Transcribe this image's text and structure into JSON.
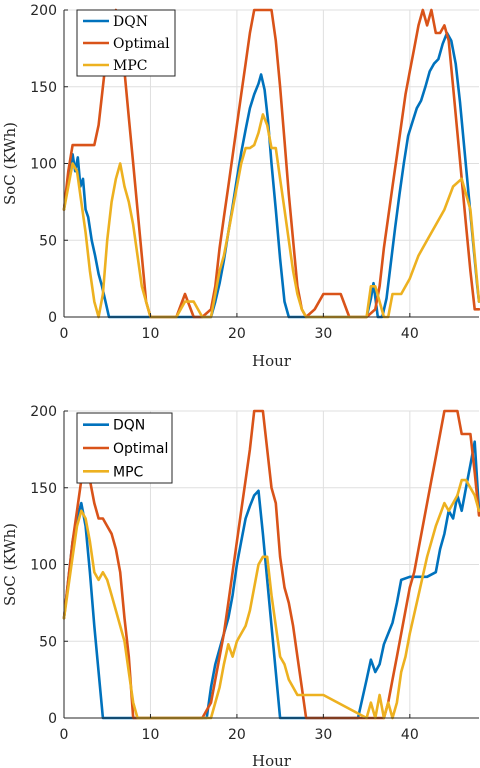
{
  "chart_data": [
    {
      "type": "line",
      "xlabel": "Hour",
      "ylabel": "SoC (KWh)",
      "xlim": [
        0,
        48
      ],
      "ylim": [
        0,
        200
      ],
      "xticks": [
        "0",
        "10",
        "20",
        "30",
        "40"
      ],
      "yticks": [
        "0",
        "50",
        "100",
        "150",
        "200"
      ],
      "grid": true,
      "legend": "top-left",
      "legend_font": "serif",
      "series": [
        {
          "name": "DQN",
          "color": "#0072bd",
          "x": [
            0,
            0.5,
            1,
            1.3,
            1.6,
            1.9,
            2.2,
            2.5,
            2.8,
            3.2,
            3.6,
            4.0,
            4.4,
            4.8,
            5.2,
            10,
            15,
            17,
            17.5,
            18,
            18.5,
            19,
            19.5,
            20,
            20.5,
            21,
            21.5,
            22,
            22.5,
            22.8,
            23.2,
            23.6,
            24,
            24.5,
            25,
            25.5,
            26,
            30,
            31,
            34,
            35,
            35.5,
            35.8,
            36.3,
            36.8,
            37.3,
            37.8,
            38.3,
            38.8,
            39.3,
            39.8,
            40.3,
            40.8,
            41.3,
            41.8,
            42.3,
            42.8,
            43.3,
            43.8,
            44.3,
            44.8,
            45.3,
            45.8,
            46.3,
            46.8,
            47.3,
            47.8,
            48
          ],
          "y": [
            70,
            90,
            106,
            95,
            104,
            85,
            90,
            70,
            65,
            50,
            40,
            28,
            20,
            10,
            0,
            0,
            0,
            0,
            10,
            22,
            37,
            55,
            72,
            90,
            107,
            122,
            136,
            145,
            152,
            158,
            148,
            128,
            100,
            70,
            38,
            10,
            0,
            0,
            0,
            0,
            0,
            12,
            22,
            0,
            0,
            12,
            35,
            58,
            80,
            100,
            118,
            127,
            136,
            141,
            150,
            160,
            165,
            168,
            178,
            185,
            180,
            165,
            140,
            110,
            80,
            50,
            20,
            10
          ]
        },
        {
          "name": "Optimal",
          "color": "#d95319",
          "x": [
            0,
            0.5,
            1,
            2,
            3,
            3.5,
            4,
            4.5,
            5,
            5.5,
            6,
            6.5,
            7,
            7.5,
            8,
            8.5,
            9,
            9.5,
            10,
            11,
            12,
            13,
            14,
            15,
            16,
            17,
            17.5,
            18,
            18.5,
            19,
            19.5,
            20,
            20.5,
            21,
            21.5,
            22,
            22.5,
            23,
            24,
            24.5,
            25,
            25.5,
            26,
            26.5,
            27,
            27.5,
            28,
            29,
            30,
            31,
            32,
            33,
            34,
            35,
            36,
            36.5,
            37,
            37.5,
            38,
            38.5,
            39,
            39.5,
            40,
            40.5,
            41,
            41.5,
            42,
            42.5,
            43,
            43.5,
            44,
            44.5,
            45,
            45.5,
            46,
            46.5,
            47,
            47.5,
            48
          ],
          "y": [
            70,
            95,
            112,
            112,
            112,
            112,
            125,
            150,
            175,
            195,
            200,
            185,
            160,
            130,
            100,
            70,
            40,
            10,
            0,
            0,
            0,
            0,
            15,
            0,
            0,
            5,
            20,
            45,
            65,
            85,
            105,
            125,
            145,
            165,
            185,
            200,
            200,
            200,
            200,
            180,
            150,
            115,
            80,
            50,
            20,
            5,
            0,
            5,
            15,
            15,
            15,
            0,
            0,
            0,
            5,
            20,
            45,
            65,
            85,
            105,
            125,
            145,
            160,
            175,
            190,
            200,
            190,
            200,
            185,
            185,
            190,
            180,
            150,
            120,
            90,
            60,
            30,
            5,
            5
          ]
        },
        {
          "name": "MPC",
          "color": "#edb120",
          "x": [
            0,
            0.5,
            1,
            1.5,
            2,
            2.5,
            3,
            3.5,
            4,
            4.5,
            5,
            5.5,
            6,
            6.5,
            7,
            7.5,
            8,
            8.5,
            9,
            9.5,
            10,
            12,
            13,
            14,
            15,
            16,
            17,
            17.5,
            18,
            18.5,
            19,
            19.5,
            20,
            20.5,
            21,
            21.5,
            22,
            22.5,
            23,
            23.5,
            24,
            24.5,
            25,
            25.5,
            26,
            26.5,
            27,
            27.5,
            28,
            29,
            30,
            35,
            35.5,
            36,
            36.5,
            37,
            37.5,
            38,
            39,
            40,
            41,
            42,
            43,
            44,
            45,
            46,
            47,
            48
          ],
          "y": [
            70,
            85,
            100,
            95,
            75,
            55,
            30,
            10,
            0,
            15,
            50,
            75,
            90,
            100,
            85,
            75,
            60,
            40,
            20,
            10,
            0,
            0,
            0,
            10,
            10,
            0,
            0,
            15,
            30,
            40,
            55,
            70,
            85,
            100,
            110,
            110,
            112,
            120,
            132,
            125,
            110,
            110,
            90,
            70,
            50,
            30,
            15,
            5,
            0,
            0,
            0,
            0,
            20,
            20,
            10,
            0,
            0,
            15,
            15,
            25,
            40,
            50,
            60,
            70,
            85,
            90,
            70,
            10
          ]
        }
      ]
    },
    {
      "type": "line",
      "xlabel": "Hour",
      "ylabel": "SoC (KWh)",
      "xlim": [
        0,
        48
      ],
      "ylim": [
        0,
        200
      ],
      "xticks": [
        "0",
        "10",
        "20",
        "30",
        "40"
      ],
      "yticks": [
        "0",
        "50",
        "100",
        "150",
        "200"
      ],
      "grid": true,
      "legend": "top-left",
      "legend_font": "sans",
      "series": [
        {
          "name": "DQN",
          "color": "#0072bd",
          "x": [
            0,
            0.5,
            1,
            1.5,
            2,
            2.5,
            3,
            3.5,
            4,
            4.5,
            10,
            15,
            16.5,
            17,
            17.5,
            18,
            18.5,
            19,
            19.5,
            20,
            20.5,
            21,
            21.5,
            22,
            22.5,
            23,
            23.5,
            24,
            24.5,
            25,
            26,
            30,
            34,
            35,
            35.5,
            36,
            36.5,
            37,
            37.5,
            38,
            38.5,
            39,
            40,
            42,
            43,
            43.5,
            44,
            44.5,
            45,
            45.5,
            46,
            46.5,
            47,
            47.5,
            48
          ],
          "y": [
            65,
            90,
            115,
            130,
            140,
            125,
            95,
            60,
            30,
            0,
            0,
            0,
            0,
            20,
            35,
            45,
            55,
            65,
            80,
            100,
            115,
            130,
            138,
            145,
            148,
            120,
            90,
            60,
            30,
            0,
            0,
            0,
            0,
            25,
            38,
            30,
            35,
            48,
            55,
            62,
            75,
            90,
            92,
            92,
            95,
            110,
            120,
            135,
            130,
            145,
            135,
            150,
            165,
            180,
            135
          ]
        },
        {
          "name": "Optimal",
          "color": "#d95319",
          "x": [
            0,
            0.5,
            1,
            1.5,
            2,
            2.5,
            3,
            3.5,
            4,
            4.5,
            5,
            5.5,
            6,
            6.5,
            7,
            7.5,
            8,
            10,
            16,
            17,
            17.5,
            18,
            18.5,
            19,
            19.5,
            20,
            20.5,
            21,
            21.5,
            22,
            22.5,
            23,
            23.5,
            24,
            24.5,
            25,
            25.5,
            26,
            26.5,
            27,
            27.5,
            28,
            30,
            37,
            37.5,
            38,
            38.5,
            39,
            39.5,
            40,
            40.5,
            41,
            41.5,
            42,
            42.5,
            43,
            43.5,
            44,
            44.5,
            45,
            45.5,
            46,
            46.5,
            47,
            47.5,
            48
          ],
          "y": [
            65,
            90,
            115,
            135,
            155,
            165,
            155,
            140,
            130,
            130,
            125,
            120,
            110,
            95,
            65,
            40,
            0,
            0,
            0,
            10,
            25,
            40,
            55,
            75,
            95,
            115,
            135,
            155,
            175,
            200,
            200,
            200,
            175,
            150,
            140,
            105,
            85,
            75,
            60,
            40,
            20,
            0,
            0,
            0,
            10,
            25,
            40,
            55,
            70,
            85,
            95,
            110,
            125,
            140,
            155,
            170,
            185,
            200,
            200,
            200,
            200,
            185,
            185,
            185,
            160,
            132
          ]
        },
        {
          "name": "MPC",
          "color": "#edb120",
          "x": [
            0,
            0.5,
            1,
            1.5,
            2,
            2.5,
            3,
            3.5,
            4,
            4.5,
            5,
            5.5,
            6,
            6.5,
            7,
            7.5,
            8,
            8.5,
            10,
            15,
            17,
            17.5,
            18,
            18.5,
            19,
            19.5,
            20,
            20.5,
            21,
            21.5,
            22,
            22.5,
            23,
            23.5,
            24,
            24.5,
            25,
            25.5,
            26,
            26.5,
            27,
            30,
            35,
            35.5,
            36,
            36.5,
            37,
            37.5,
            38,
            38.5,
            39,
            39.5,
            40,
            41,
            42,
            43,
            44,
            44.5,
            45,
            45.5,
            46,
            46.5,
            47,
            47.5,
            48
          ],
          "y": [
            65,
            85,
            105,
            125,
            135,
            130,
            115,
            95,
            90,
            95,
            90,
            80,
            70,
            60,
            50,
            30,
            10,
            0,
            0,
            0,
            0,
            10,
            20,
            35,
            48,
            40,
            50,
            55,
            60,
            70,
            85,
            100,
            105,
            105,
            80,
            60,
            40,
            35,
            25,
            20,
            15,
            15,
            0,
            10,
            0,
            15,
            0,
            10,
            0,
            10,
            30,
            40,
            55,
            80,
            105,
            125,
            140,
            135,
            140,
            145,
            155,
            155,
            150,
            145,
            135
          ]
        }
      ]
    }
  ]
}
